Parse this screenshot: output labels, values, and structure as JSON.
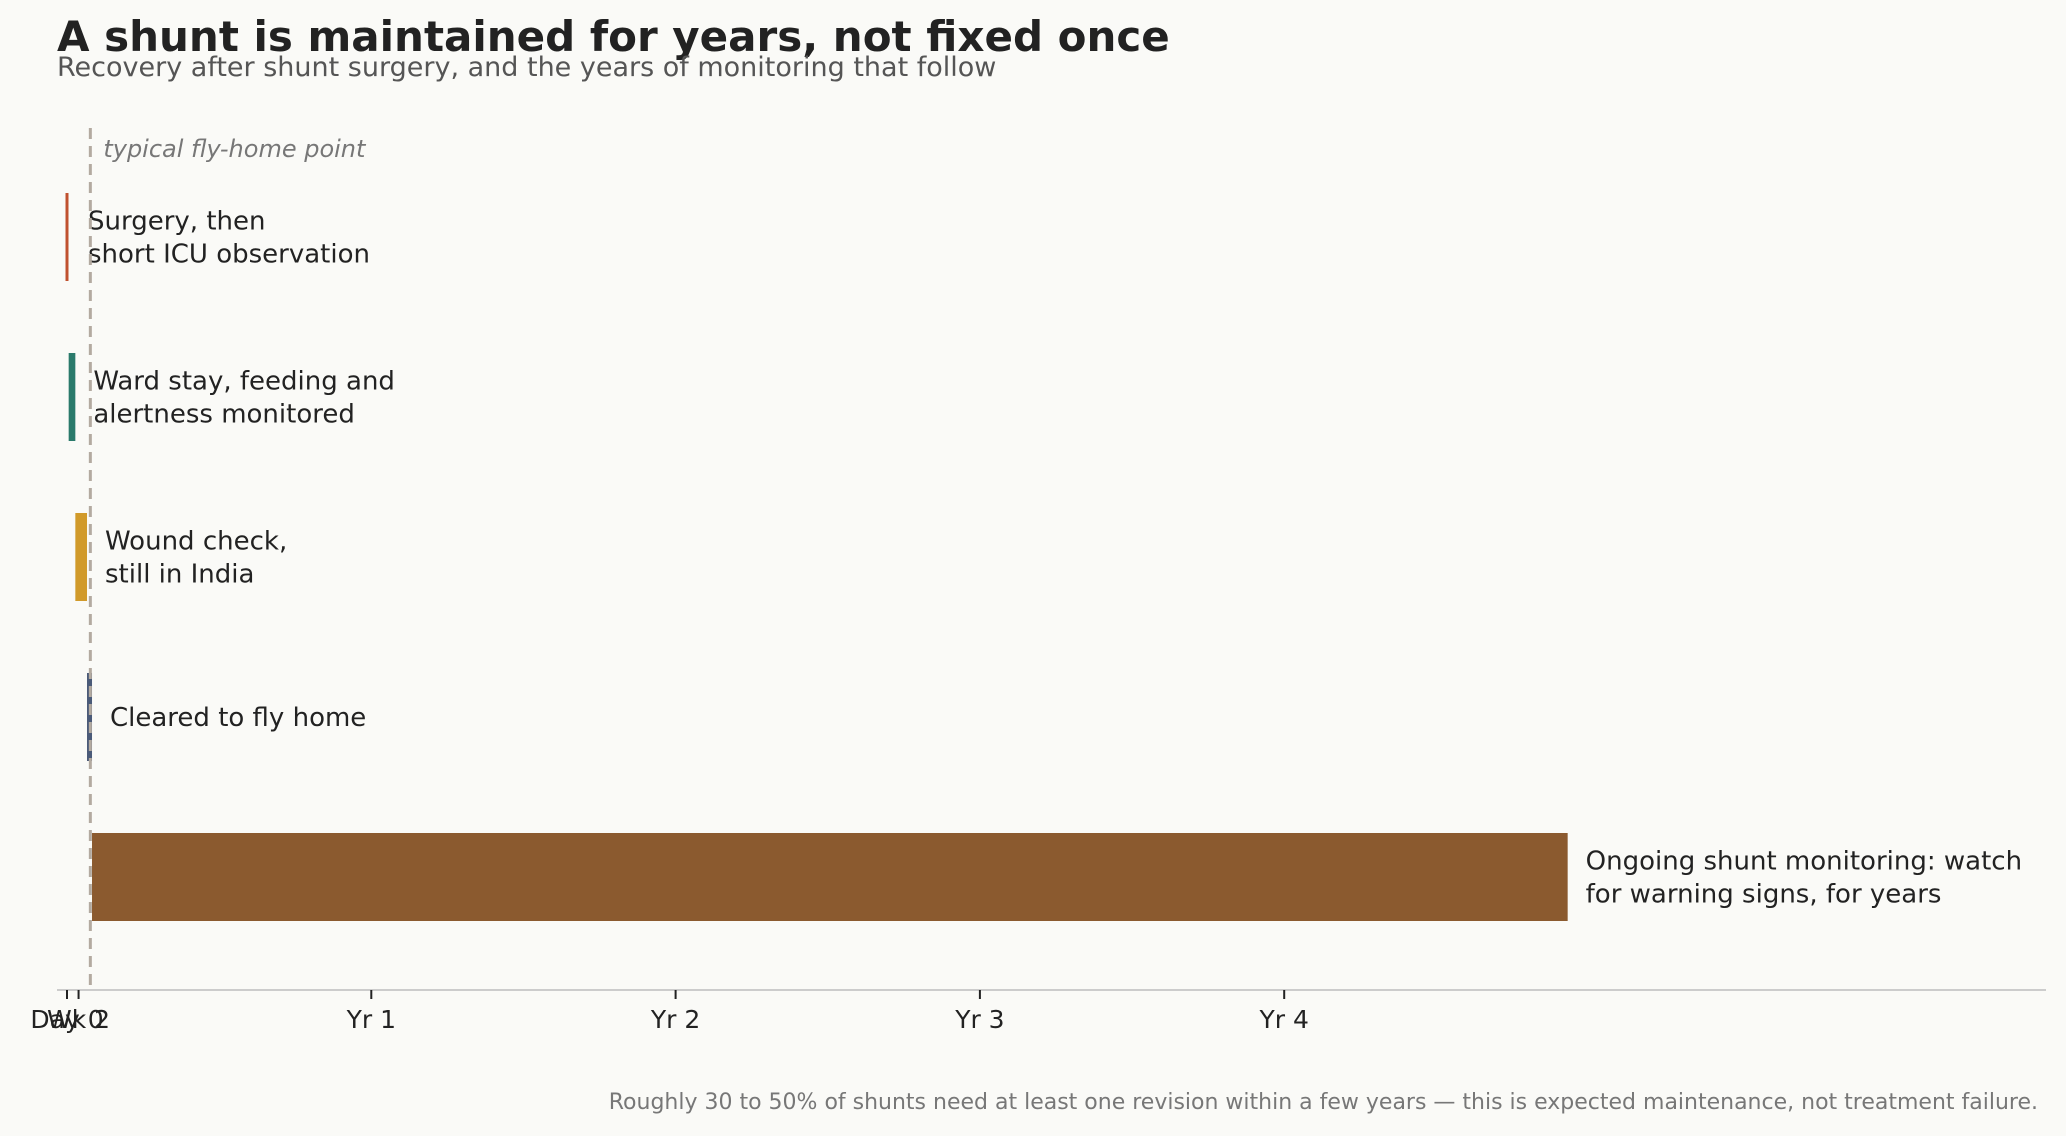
{
  "chart_data": {
    "type": "bar",
    "orientation": "horizontal",
    "title": "A shunt is maintained for years, not fixed once",
    "subtitle": "Recovery after shunt surgery, and the years of monitoring that follow",
    "footnote": "Roughly 30 to 50% of shunts need at least one revision within a few years — this is expected maintenance, not treatment failure.",
    "x_unit": "days",
    "xlim": [
      -1,
      6.5
    ],
    "x_ticks": [
      {
        "label": "Day 0",
        "value": 0
      },
      {
        "label": "Wk 2",
        "value": 0.038
      },
      {
        "label": "Yr 1",
        "value": 1
      },
      {
        "label": "Yr 2",
        "value": 2
      },
      {
        "label": "Yr 3",
        "value": 3
      },
      {
        "label": "Yr 4",
        "value": 4
      }
    ],
    "x_tick_unit": "years",
    "reference_line": {
      "value_days": 28,
      "label": "typical fly-home point"
    },
    "phases": [
      {
        "label_lines": [
          "Surgery, then",
          "short ICU observation"
        ],
        "start_days": 0,
        "end_days": 2,
        "color": "#c0512f"
      },
      {
        "label_lines": [
          "Ward stay, feeding and",
          "alertness monitored"
        ],
        "start_days": 2,
        "end_days": 10,
        "color": "#2a7a6b"
      },
      {
        "label_lines": [
          "Wound check,",
          "still in India"
        ],
        "start_days": 10,
        "end_days": 24,
        "color": "#d19a2a"
      },
      {
        "label_lines": [
          "Cleared to fly home"
        ],
        "start_days": 24,
        "end_days": 30,
        "color": "#4a5a78"
      },
      {
        "label_lines": [
          "Ongoing shunt monitoring: watch",
          "for warning signs, for years"
        ],
        "start_days": 30,
        "end_days": 1800,
        "color": "#8b5a2f"
      }
    ]
  }
}
